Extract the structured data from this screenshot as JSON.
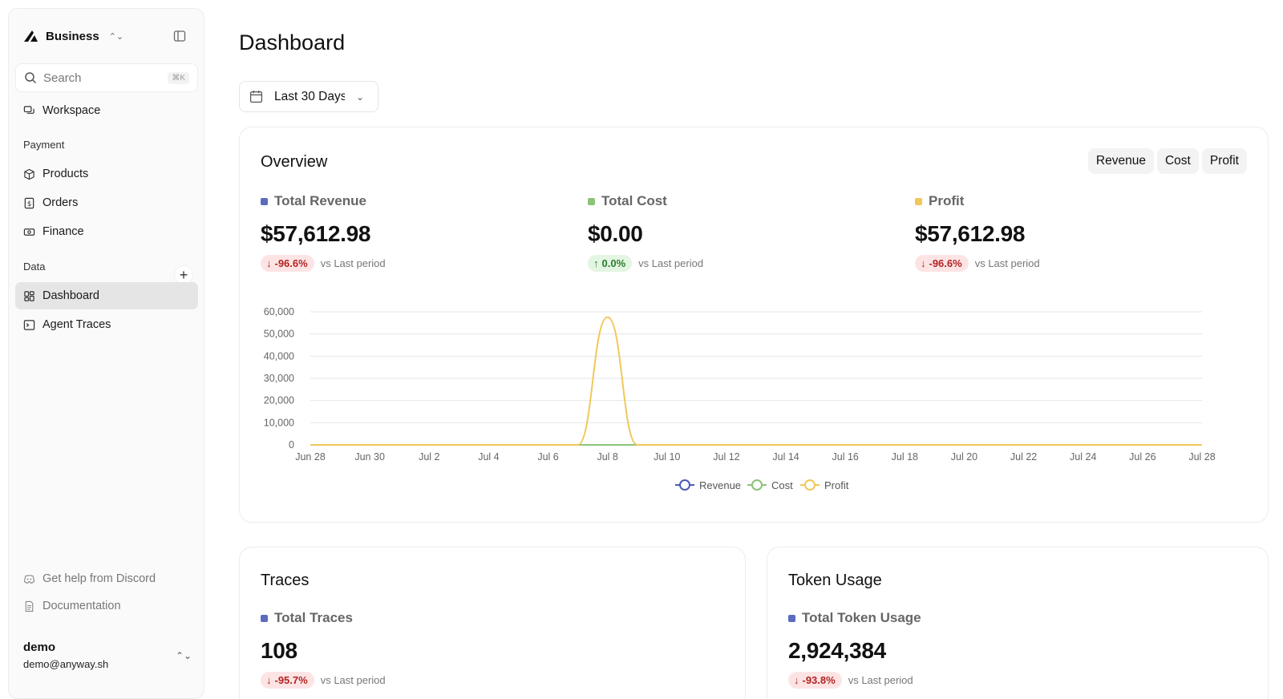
{
  "sidebar": {
    "brand": "Business",
    "search_placeholder": "Search",
    "search_shortcut": "⌘K",
    "workspace": "Workspace",
    "sections": {
      "payment": "Payment",
      "data": "Data"
    },
    "payment_items": [
      "Products",
      "Orders",
      "Finance"
    ],
    "data_items": [
      "Dashboard",
      "Agent Traces"
    ],
    "active_item": "Dashboard",
    "footer_links": [
      "Get help from Discord",
      "Documentation"
    ],
    "user": {
      "name": "demo",
      "email": "demo@anyway.sh"
    }
  },
  "page": {
    "title": "Dashboard",
    "date_range": "Last 30 Days"
  },
  "overview": {
    "title": "Overview",
    "toggles": [
      "Revenue",
      "Cost",
      "Profit"
    ],
    "metrics": [
      {
        "label": "Total Revenue",
        "value": "$57,612.98",
        "delta": "-96.6%",
        "direction": "down",
        "note": "vs Last period",
        "color": "#5b6bc0"
      },
      {
        "label": "Total Cost",
        "value": "$0.00",
        "delta": "0.0%",
        "direction": "up",
        "note": "vs Last period",
        "color": "#8bc37a"
      },
      {
        "label": "Profit",
        "value": "$57,612.98",
        "delta": "-96.6%",
        "direction": "down",
        "note": "vs Last period",
        "color": "#f0c85a"
      }
    ]
  },
  "chart_data": {
    "type": "line",
    "x": [
      "Jun 28",
      "Jun 29",
      "Jun 30",
      "Jul 1",
      "Jul 2",
      "Jul 3",
      "Jul 4",
      "Jul 5",
      "Jul 6",
      "Jul 7",
      "Jul 8",
      "Jul 9",
      "Jul 10",
      "Jul 11",
      "Jul 12",
      "Jul 13",
      "Jul 14",
      "Jul 15",
      "Jul 16",
      "Jul 17",
      "Jul 18",
      "Jul 19",
      "Jul 20",
      "Jul 21",
      "Jul 22",
      "Jul 23",
      "Jul 24",
      "Jul 25",
      "Jul 26",
      "Jul 27",
      "Jul 28"
    ],
    "x_tick_labels": [
      "Jun 28",
      "Jun 30",
      "Jul 2",
      "Jul 4",
      "Jul 6",
      "Jul 8",
      "Jul 10",
      "Jul 12",
      "Jul 14",
      "Jul 16",
      "Jul 18",
      "Jul 20",
      "Jul 22",
      "Jul 24",
      "Jul 26",
      "Jul 28"
    ],
    "y_ticks": [
      "0",
      "10,000",
      "20,000",
      "30,000",
      "40,000",
      "50,000",
      "60,000"
    ],
    "ylim": [
      0,
      60000
    ],
    "grid": true,
    "legend_position": "bottom-center",
    "series": [
      {
        "name": "Revenue",
        "color": "#4a5bb8",
        "values": [
          0,
          0,
          0,
          0,
          0,
          0,
          0,
          0,
          0,
          0,
          57613,
          0,
          0,
          0,
          0,
          0,
          0,
          0,
          0,
          0,
          0,
          0,
          0,
          0,
          0,
          0,
          0,
          0,
          0,
          0,
          0
        ]
      },
      {
        "name": "Cost",
        "color": "#8bc37a",
        "values": [
          0,
          0,
          0,
          0,
          0,
          0,
          0,
          0,
          0,
          0,
          0,
          0,
          0,
          0,
          0,
          0,
          0,
          0,
          0,
          0,
          0,
          0,
          0,
          0,
          0,
          0,
          0,
          0,
          0,
          0,
          0
        ]
      },
      {
        "name": "Profit",
        "color": "#f0c85a",
        "values": [
          0,
          0,
          0,
          0,
          0,
          0,
          0,
          0,
          0,
          0,
          57613,
          0,
          0,
          0,
          0,
          0,
          0,
          0,
          0,
          0,
          0,
          0,
          0,
          0,
          0,
          0,
          0,
          0,
          0,
          0,
          0
        ]
      }
    ]
  },
  "traces": {
    "title": "Traces",
    "label": "Total Traces",
    "value": "108",
    "delta": "-95.7%",
    "note": "vs Last period",
    "color": "#5b6bc0"
  },
  "tokens": {
    "title": "Token Usage",
    "label": "Total Token Usage",
    "value": "2,924,384",
    "delta": "-93.8%",
    "note": "vs Last period",
    "color": "#5b6bc0"
  }
}
